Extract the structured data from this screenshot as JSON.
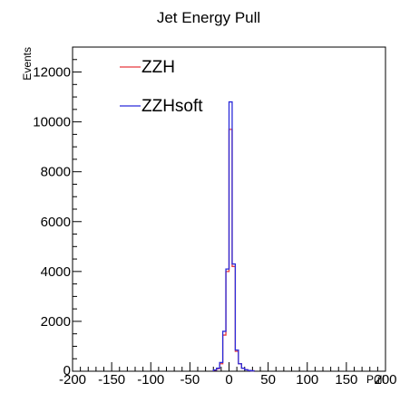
{
  "chart_data": {
    "type": "line",
    "subtype": "step-histogram",
    "title": "Jet Energy Pull",
    "xlabel": "Pull",
    "ylabel": "Events",
    "xlim": [
      -200,
      200
    ],
    "ylim": [
      0,
      13000
    ],
    "x_ticks": [
      "-200",
      "-150",
      "-100",
      "-50",
      "0",
      "50",
      "100",
      "150",
      "200"
    ],
    "y_ticks": [
      "2000",
      "4000",
      "6000",
      "8000",
      "10000",
      "12000"
    ],
    "bin_width": 4,
    "grid": false,
    "legend_position": "top-left",
    "series": [
      {
        "name": "ZZH",
        "color": "#e8383d",
        "bins": [
          {
            "x0": -20,
            "y": 40
          },
          {
            "x0": -16,
            "y": 100
          },
          {
            "x0": -12,
            "y": 300
          },
          {
            "x0": -8,
            "y": 1450
          },
          {
            "x0": -4,
            "y": 4000
          },
          {
            "x0": 0,
            "y": 9700
          },
          {
            "x0": 4,
            "y": 4200
          },
          {
            "x0": 8,
            "y": 800
          },
          {
            "x0": 12,
            "y": 300
          },
          {
            "x0": 16,
            "y": 120
          },
          {
            "x0": 20,
            "y": 60
          },
          {
            "x0": 24,
            "y": 30
          },
          {
            "x0": 28,
            "y": 15
          }
        ]
      },
      {
        "name": "ZZHsoft",
        "color": "#2b2bd9",
        "bins": [
          {
            "x0": -20,
            "y": 50
          },
          {
            "x0": -16,
            "y": 120
          },
          {
            "x0": -12,
            "y": 350
          },
          {
            "x0": -8,
            "y": 1600
          },
          {
            "x0": -4,
            "y": 4100
          },
          {
            "x0": 0,
            "y": 10800
          },
          {
            "x0": 4,
            "y": 4300
          },
          {
            "x0": 8,
            "y": 850
          },
          {
            "x0": 12,
            "y": 300
          },
          {
            "x0": 16,
            "y": 120
          },
          {
            "x0": 20,
            "y": 60
          },
          {
            "x0": 24,
            "y": 30
          },
          {
            "x0": 28,
            "y": 15
          }
        ]
      }
    ]
  }
}
